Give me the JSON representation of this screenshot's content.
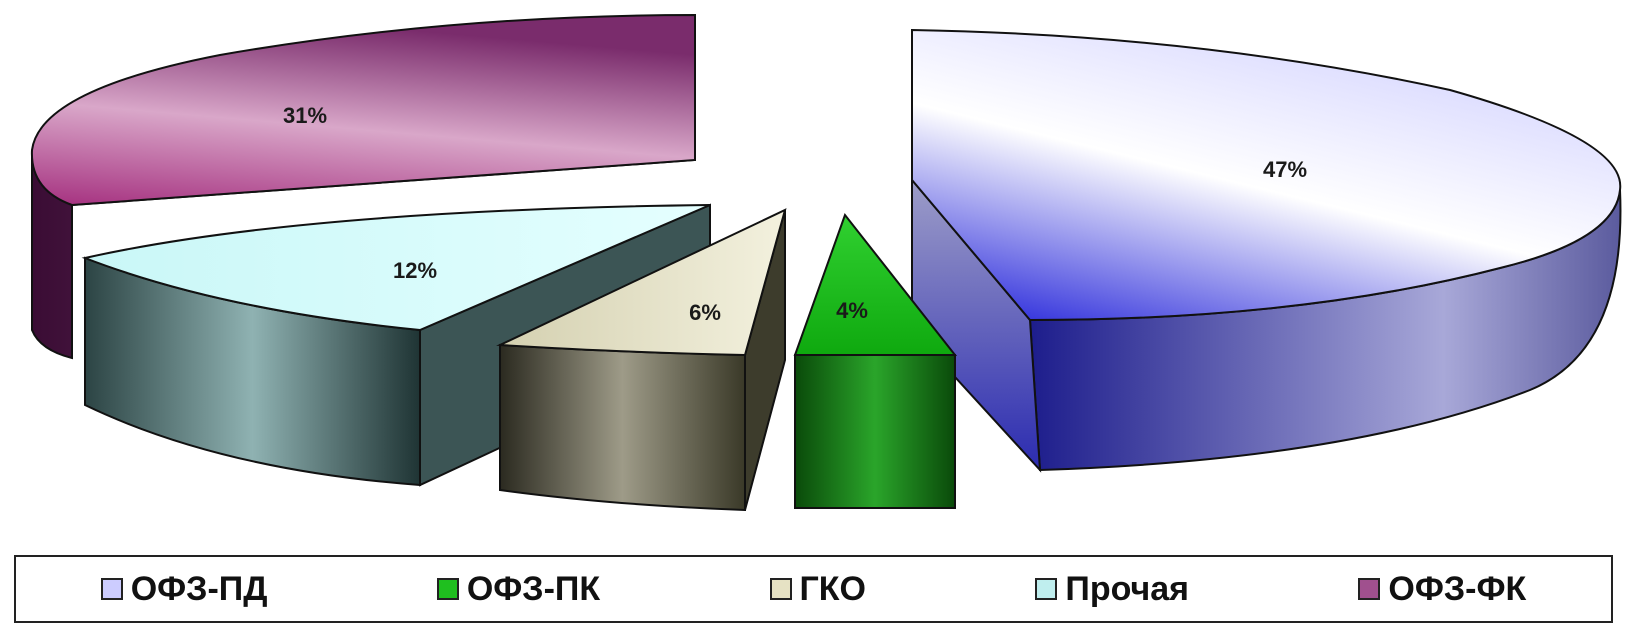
{
  "chart_data": {
    "type": "pie",
    "slices": [
      {
        "name": "ОФЗ-ПД",
        "value": 47,
        "label": "47%",
        "color": "#2f2fd0"
      },
      {
        "name": "ОФЗ-ПК",
        "value": 4,
        "label": "4%",
        "color": "#1fbf1f"
      },
      {
        "name": "ГКО",
        "value": 6,
        "label": "6%",
        "color": "#e6e2c4"
      },
      {
        "name": "Прочая",
        "value": 12,
        "label": "12%",
        "color": "#bfeeee"
      },
      {
        "name": "ОФЗ-ФК",
        "value": 31,
        "label": "31%",
        "color": "#a0508e"
      }
    ],
    "legend_position": "bottom"
  }
}
